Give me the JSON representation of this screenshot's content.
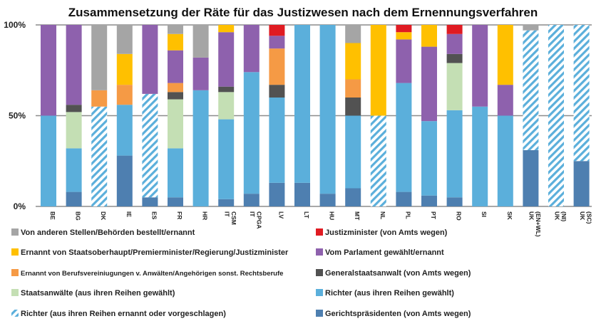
{
  "chart_data": {
    "type": "bar",
    "stacked": true,
    "title": "Zusammensetzung der Räte für das Justizwesen nach dem Ernennungsverfahren",
    "ylim": [
      0,
      100
    ],
    "yticks": [
      "0%",
      "50%",
      "100%"
    ],
    "grid": true,
    "legend_position": "bottom",
    "categories": [
      "BE",
      "BG",
      "DK",
      "IE",
      "ES",
      "FR",
      "HR",
      "IT CSM",
      "IT CPGA",
      "LV",
      "LT",
      "HU",
      "MT",
      "NL",
      "PL",
      "PT",
      "RO",
      "SI",
      "SK",
      "UK (EN+WL)",
      "UK (NI)",
      "UK (SC)"
    ],
    "series": [
      {
        "name": "Gerichtspräsidenten (von Amts wegen)",
        "color": "#4e7fb0",
        "pattern": "solid",
        "values": [
          0,
          8,
          0,
          28,
          5,
          5,
          0,
          4,
          7,
          13,
          13,
          7,
          10,
          0,
          8,
          6,
          5,
          0,
          0,
          31,
          0,
          25
        ]
      },
      {
        "name": "Richter (aus ihren Reihen ernannt oder vorgeschlagen)",
        "color": "#5bafdb",
        "pattern": "hatched",
        "values": [
          0,
          0,
          55,
          0,
          57,
          0,
          0,
          0,
          0,
          0,
          0,
          0,
          0,
          50,
          0,
          0,
          0,
          0,
          0,
          66,
          100,
          75
        ]
      },
      {
        "name": "Richter (aus ihren Reihen gewählt)",
        "color": "#5bafdb",
        "pattern": "solid",
        "values": [
          50,
          24,
          0,
          28,
          0,
          27,
          64,
          44,
          67,
          47,
          87,
          93,
          40,
          0,
          60,
          41,
          48,
          55,
          50,
          0,
          0,
          0
        ]
      },
      {
        "name": "Staatsanwälte (aus ihren Reihen gewählt)",
        "color": "#c4dfb4",
        "pattern": "solid",
        "values": [
          0,
          20,
          0,
          0,
          0,
          27,
          0,
          15,
          0,
          0,
          0,
          0,
          0,
          0,
          0,
          0,
          26,
          0,
          0,
          0,
          0,
          0
        ]
      },
      {
        "name": "Generalstaatsanwalt (von Amts wegen)",
        "color": "#525252",
        "pattern": "solid",
        "values": [
          0,
          4,
          0,
          0,
          0,
          4,
          0,
          3,
          0,
          7,
          0,
          0,
          10,
          0,
          0,
          0,
          5,
          0,
          0,
          0,
          0,
          0
        ]
      },
      {
        "name": "Ernannt von Berufsvereiniugungen v. Anwälten/Angehörigen sonst. Rechtsberufe",
        "color": "#f59a45",
        "pattern": "solid",
        "values": [
          0,
          0,
          9,
          11,
          0,
          5,
          0,
          0,
          0,
          20,
          0,
          0,
          10,
          0,
          0,
          0,
          0,
          0,
          0,
          0,
          0,
          0
        ]
      },
      {
        "name": "Vom Parlament gewählt/ernannt",
        "color": "#8e61ad",
        "pattern": "solid",
        "values": [
          50,
          44,
          0,
          0,
          38,
          18,
          18,
          30,
          26,
          7,
          0,
          0,
          0,
          0,
          24,
          41,
          11,
          45,
          17,
          0,
          0,
          0
        ]
      },
      {
        "name": "Ernannt von Staatsoberhaupt/Premierminister/Regierung/Justizminister",
        "color": "#ffc000",
        "pattern": "solid",
        "values": [
          0,
          0,
          0,
          17,
          0,
          9,
          0,
          4,
          0,
          0,
          0,
          0,
          20,
          50,
          4,
          12,
          0,
          0,
          33,
          0,
          0,
          0
        ]
      },
      {
        "name": "Justizminister (von Amts wegen)",
        "color": "#e01b22",
        "pattern": "solid",
        "values": [
          0,
          0,
          0,
          0,
          0,
          0,
          0,
          0,
          0,
          6,
          0,
          0,
          0,
          0,
          4,
          0,
          5,
          0,
          0,
          0,
          0,
          0
        ]
      },
      {
        "name": "Von anderen Stellen/Behörden bestellt/ernannt",
        "color": "#a5a5a5",
        "pattern": "solid",
        "values": [
          0,
          0,
          36,
          16,
          0,
          5,
          18,
          0,
          0,
          0,
          0,
          0,
          10,
          0,
          0,
          0,
          0,
          0,
          0,
          3,
          0,
          0
        ]
      }
    ],
    "legend": [
      {
        "series": 9,
        "label": "Von anderen Stellen/Behörden bestellt/ernannt"
      },
      {
        "series": 8,
        "label": "Justizminister (von Amts wegen)"
      },
      {
        "series": 7,
        "label": "Ernannt von Staatsoberhaupt/Premierminister/Regierung/Justizminister"
      },
      {
        "series": 6,
        "label": "Vom Parlament gewählt/ernannt"
      },
      {
        "series": 5,
        "label": "Ernannt von Berufsvereiniugungen v. Anwälten/Angehörigen sonst. Rechtsberufe"
      },
      {
        "series": 4,
        "label": "Generalstaatsanwalt (von Amts wegen)"
      },
      {
        "series": 3,
        "label": "Staatsanwälte (aus ihren Reihen gewählt)"
      },
      {
        "series": 2,
        "label": "Richter (aus ihren Reihen gewählt)"
      },
      {
        "series": 1,
        "label": "Richter (aus ihren Reihen ernannt oder vorgeschlagen)"
      },
      {
        "series": 0,
        "label": "Gerichtspräsidenten (von Amts wegen)"
      }
    ]
  }
}
